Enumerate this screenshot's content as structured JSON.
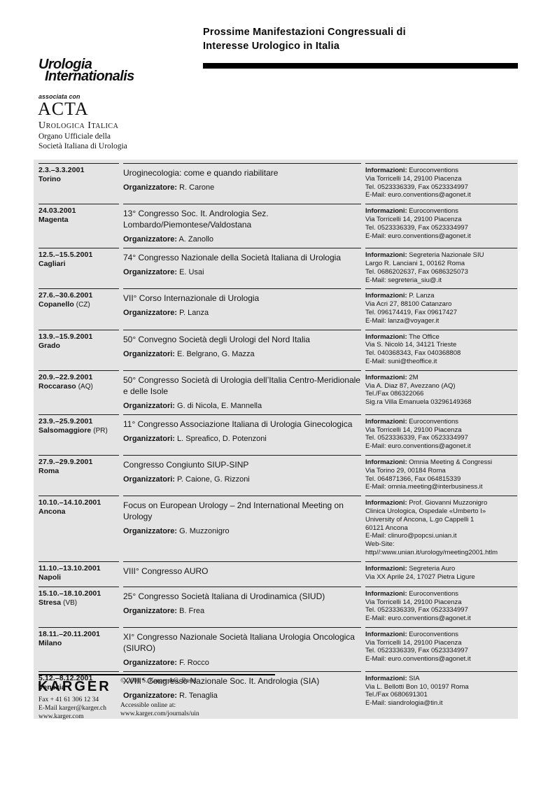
{
  "header": {
    "title_line1": "Prossime Manifestazioni Congressuali di",
    "title_line2": "Interesse Urologico in Italia"
  },
  "masthead": {
    "journal_line1": "Urologia",
    "journal_line2": "Internationalis",
    "associated": "associata con",
    "acta_main": "ACTA",
    "acta_sub": "Urologica Italica",
    "organ_line1": "Organo Ufficiale della",
    "organ_line2": "Società Italiana di Urologia"
  },
  "events": [
    {
      "date": "2.3.–3.3.2001",
      "location": "Torino",
      "location_suffix": "",
      "title": "Uroginecologia: come e quando riabilitare",
      "organizer_label": "Organizzatore:",
      "organizers": "R. Carone",
      "info_label": "Informazioni:",
      "info_name": "Euroconventions",
      "info_lines": [
        "Via Torricelli 14, 29100 Piacenza",
        "Tel. 0523336339, Fax 0523334997",
        "E-Mail: euro.conventions@agonet.it"
      ]
    },
    {
      "date": "24.03.2001",
      "location": "Magenta",
      "location_suffix": "",
      "title": "13° Congresso Soc. It. Andrologia Sez. Lombardo/Piemontese/Valdostana",
      "organizer_label": "Organizzatore:",
      "organizers": "A. Zanollo",
      "info_label": "Informazioni:",
      "info_name": "Euroconventions",
      "info_lines": [
        "Via Torricelli 14, 29100 Piacenza",
        "Tel. 0523336339, Fax 0523334997",
        "E-Mail: euro.conventions@agonet.it"
      ]
    },
    {
      "date": "12.5.–15.5.2001",
      "location": "Cagliari",
      "location_suffix": "",
      "title": "74° Congresso Nazionale della Società Italiana di Urologia",
      "organizer_label": "Organizzatore:",
      "organizers": "E. Usai",
      "info_label": "Informazioni:",
      "info_name": "Segreteria Nazionale SIU",
      "info_lines": [
        "Largo R. Lanciani 1, 00162 Roma",
        "Tel. 0686202637, Fax 0686325073",
        "E-Mail: segreteria_siu@.it"
      ]
    },
    {
      "date": "27.6.–30.6.2001",
      "location": "Copanello",
      "location_suffix": "(CZ)",
      "title": "VII° Corso Internazionale di Urologia",
      "organizer_label": "Organizzatore:",
      "organizers": "P. Lanza",
      "info_label": "Informazioni:",
      "info_name": "P. Lanza",
      "info_lines": [
        "Via Acri 27, 88100 Catanzaro",
        "Tel. 096174419, Fax 09617427",
        "E-Mail: lanza@voyager.it"
      ]
    },
    {
      "date": "13.9.–15.9.2001",
      "location": "Grado",
      "location_suffix": "",
      "title": "50° Convegno Società degli Urologi del Nord Italia",
      "organizer_label": "Organizzatori:",
      "organizers": "E. Belgrano, G. Mazza",
      "info_label": "Informazioni:",
      "info_name": "The Office",
      "info_lines": [
        "Via S. Nicolò 14, 34121 Trieste",
        "Tel. 040368343, Fax 040368808",
        "E-Mail: suni@theoffice.it"
      ]
    },
    {
      "date": "20.9.–22.9.2001",
      "location": "Roccaraso",
      "location_suffix": "(AQ)",
      "title": "50° Congresso Società di Urologia dell’Italia Centro-Meridionale e delle Isole",
      "organizer_label": "Organizzatori:",
      "organizers": "G. di Nicola, E. Mannella",
      "info_label": "Informazioni:",
      "info_name": "2M",
      "info_lines": [
        "Via A. Diaz 87, Avezzano (AQ)",
        "Tel./Fax 086322066",
        "Sig.ra Villa Emanuela 03296149368"
      ]
    },
    {
      "date": "23.9.–25.9.2001",
      "location": "Salsomaggiore",
      "location_suffix": "(PR)",
      "title": "11° Congresso Associazione Italiana di Urologia Ginecologica",
      "organizer_label": "Organizzatori:",
      "organizers": "L. Spreafico, D. Potenzoni",
      "info_label": "Informazioni:",
      "info_name": "Euroconventions",
      "info_lines": [
        "Via Torricelli 14, 29100 Piacenza",
        "Tel. 0523336339, Fax 0523334997",
        "E-Mail: euro.conventions@agonet.it"
      ]
    },
    {
      "date": "27.9.–29.9.2001",
      "location": "Roma",
      "location_suffix": "",
      "title": "Congresso Congiunto SIUP-SINP",
      "organizer_label": "Organizzatori:",
      "organizers": "P. Caione, G. Rizzoni",
      "info_label": "Informazioni:",
      "info_name": "Omnia Meeting & Congressi",
      "info_lines": [
        "Via Torino 29, 00184 Roma",
        "Tel. 064871366, Fax 064815339",
        "E-Mail: omnia.meeting@interbusiness.it"
      ]
    },
    {
      "date": "10.10.–14.10.2001",
      "location": "Ancona",
      "location_suffix": "",
      "title": "Focus on European Urology – 2nd International Meeting on Urology",
      "organizer_label": "Organizzatore:",
      "organizers": "G. Muzzonigro",
      "info_label": "Informazioni:",
      "info_name": "Prof. Giovanni Muzzonigro",
      "info_lines": [
        "Clinica Urologica, Ospedale «Umberto I»",
        "University of Ancona, L.go Cappelli 1",
        "60121 Ancona",
        "E-Mail: clinuro@popcsi.unian.it",
        "Web-Site:",
        "http//:www.unian.it/urology/meeting2001.htlm"
      ]
    },
    {
      "date": "11.10.–13.10.2001",
      "location": "Napoli",
      "location_suffix": "",
      "title": "VIII° Congresso AURO",
      "organizer_label": "",
      "organizers": "",
      "info_label": "Informazioni:",
      "info_name": "Segreteria Auro",
      "info_lines": [
        "Via XX Aprile 24, 17027 Pietra Ligure"
      ]
    },
    {
      "date": "15.10.–18.10.2001",
      "location": "Stresa",
      "location_suffix": "(VB)",
      "title": "25° Congresso Società Italiana di Urodinamica (SIUD)",
      "organizer_label": "Organizzatore:",
      "organizers": "B. Frea",
      "info_label": "Informazioni:",
      "info_name": "Euroconventions",
      "info_lines": [
        "Via Torricelli 14, 29100 Piacenza",
        "Tel. 0523336339, Fax 0523334997",
        "E-Mail: euro.conventions@agonet.it"
      ]
    },
    {
      "date": "18.11.–20.11.2001",
      "location": "Milano",
      "location_suffix": "",
      "title": "XI° Congresso Nazionale Società Italiana Urologia Oncologica (SIURO)",
      "organizer_label": "Organizzatore:",
      "organizers": "F. Rocco",
      "info_label": "Informazioni:",
      "info_name": "Euroconventions",
      "info_lines": [
        "Via Torricelli 14, 29100 Piacenza",
        "Tel. 0523336339, Fax 0523334997",
        "E-Mail: euro.conventions@agonet.it"
      ]
    },
    {
      "date": "5.12.–8.12.2001",
      "location": "Venezia",
      "location_suffix": "",
      "title": "XVIII° Congresso Nazionale Soc. It. Andrologia (SIA)",
      "organizer_label": "Organizzatore:",
      "organizers": "R. Tenaglia",
      "info_label": "Informazioni:",
      "info_name": "SIA",
      "info_lines": [
        "Via L. Bellotti Bon 10, 00197 Roma",
        "Tel./Fax 0680691301",
        "E-Mail: siandrologia@tin.it"
      ]
    }
  ],
  "footer": {
    "logo": "KARGER",
    "copyright": "© 2001 S. Karger AG, Basel",
    "contact_lines": [
      "Fax + 41 61 306 12 34",
      "E-Mail karger@karger.ch",
      "www.karger.com"
    ],
    "online_lines": [
      "Accessible online at:",
      "www.karger.com/journals/uin"
    ]
  }
}
